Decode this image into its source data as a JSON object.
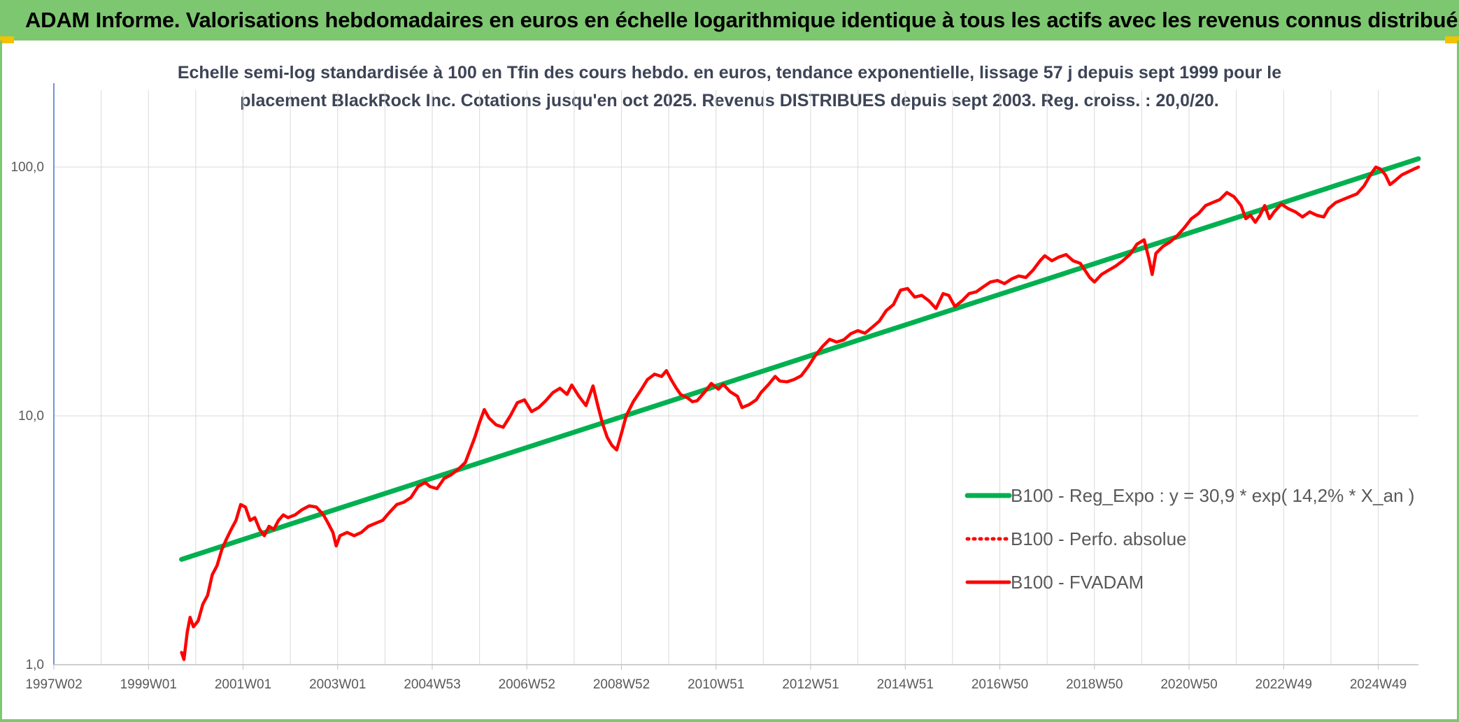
{
  "banner": {
    "title": "ADAM Informe. Valorisations hebdomadaires en euros en échelle logarithmique identique à tous les actifs avec les revenus connus distribués",
    "color": "#7dc770"
  },
  "chart_data": {
    "type": "line",
    "title_line1": "Echelle semi-log standardisée à 100 en Tfin des cours hebdo. en euros, tendance exponentielle, lissage 57 j depuis sept 1999 pour le",
    "title_line2": "placement BlackRock Inc. Cotations jusqu'en oct 2025. Revenus DISTRIBUES depuis sept 2003. Reg. croiss. : 20,0/20.",
    "y_scale": "log",
    "ylim": [
      1,
      130
    ],
    "y_ticks": [
      {
        "value": 1,
        "label": "1,0"
      },
      {
        "value": 10,
        "label": "10,0"
      },
      {
        "value": 100,
        "label": "100,0"
      }
    ],
    "x_ticks": [
      "1997W02",
      "1999W01",
      "2001W01",
      "2003W01",
      "2004W53",
      "2006W52",
      "2008W52",
      "2010W51",
      "2012W51",
      "2014W51",
      "2016W50",
      "2018W50",
      "2020W50",
      "2022W49",
      "2024W49"
    ],
    "x_tick_years": [
      1997.0,
      1999.0,
      2001.0,
      2003.0,
      2005.0,
      2007.0,
      2009.0,
      2011.0,
      2013.0,
      2015.0,
      2017.0,
      2019.0,
      2021.0,
      2023.0,
      2025.0
    ],
    "xlim": [
      1997.0,
      2025.85
    ],
    "grid": true,
    "legend_placement": "bottom-right",
    "series": [
      {
        "name": "B100 - Reg_Expo : y = 30,9 * exp( 14,2% *  X_an )",
        "color": "#00b050",
        "style": "solid",
        "points": [
          [
            1999.7,
            2.65
          ],
          [
            2025.85,
            108
          ]
        ]
      },
      {
        "name": "B100 - Perfo. absolue",
        "color": "#ff0000",
        "style": "dotted",
        "points": []
      },
      {
        "name": "B100 - FVADAM",
        "color": "#ff0000",
        "style": "solid",
        "points": [
          [
            1999.7,
            1.12
          ],
          [
            1999.75,
            1.05
          ],
          [
            1999.82,
            1.35
          ],
          [
            1999.88,
            1.55
          ],
          [
            1999.95,
            1.42
          ],
          [
            2000.05,
            1.5
          ],
          [
            2000.15,
            1.75
          ],
          [
            2000.25,
            1.9
          ],
          [
            2000.35,
            2.3
          ],
          [
            2000.45,
            2.5
          ],
          [
            2000.55,
            2.9
          ],
          [
            2000.65,
            3.2
          ],
          [
            2000.75,
            3.5
          ],
          [
            2000.85,
            3.8
          ],
          [
            2000.95,
            4.4
          ],
          [
            2001.05,
            4.3
          ],
          [
            2001.15,
            3.8
          ],
          [
            2001.25,
            3.9
          ],
          [
            2001.35,
            3.5
          ],
          [
            2001.45,
            3.3
          ],
          [
            2001.55,
            3.6
          ],
          [
            2001.65,
            3.5
          ],
          [
            2001.75,
            3.8
          ],
          [
            2001.85,
            4.0
          ],
          [
            2001.95,
            3.9
          ],
          [
            2002.1,
            4.0
          ],
          [
            2002.25,
            4.2
          ],
          [
            2002.4,
            4.35
          ],
          [
            2002.55,
            4.3
          ],
          [
            2002.7,
            4.0
          ],
          [
            2002.8,
            3.7
          ],
          [
            2002.9,
            3.4
          ],
          [
            2002.97,
            3.0
          ],
          [
            2003.05,
            3.3
          ],
          [
            2003.2,
            3.4
          ],
          [
            2003.35,
            3.3
          ],
          [
            2003.5,
            3.4
          ],
          [
            2003.65,
            3.6
          ],
          [
            2003.8,
            3.7
          ],
          [
            2003.95,
            3.8
          ],
          [
            2004.1,
            4.1
          ],
          [
            2004.25,
            4.4
          ],
          [
            2004.4,
            4.5
          ],
          [
            2004.55,
            4.7
          ],
          [
            2004.7,
            5.2
          ],
          [
            2004.85,
            5.4
          ],
          [
            2004.95,
            5.2
          ],
          [
            2005.1,
            5.1
          ],
          [
            2005.25,
            5.6
          ],
          [
            2005.4,
            5.8
          ],
          [
            2005.55,
            6.1
          ],
          [
            2005.7,
            6.5
          ],
          [
            2005.8,
            7.3
          ],
          [
            2005.9,
            8.2
          ],
          [
            2006.0,
            9.4
          ],
          [
            2006.1,
            10.6
          ],
          [
            2006.2,
            9.8
          ],
          [
            2006.35,
            9.2
          ],
          [
            2006.5,
            9.0
          ],
          [
            2006.65,
            10.0
          ],
          [
            2006.8,
            11.3
          ],
          [
            2006.95,
            11.6
          ],
          [
            2007.1,
            10.4
          ],
          [
            2007.25,
            10.8
          ],
          [
            2007.4,
            11.5
          ],
          [
            2007.55,
            12.4
          ],
          [
            2007.7,
            12.9
          ],
          [
            2007.85,
            12.2
          ],
          [
            2007.95,
            13.3
          ],
          [
            2008.1,
            12.0
          ],
          [
            2008.25,
            11.0
          ],
          [
            2008.4,
            13.2
          ],
          [
            2008.5,
            11.0
          ],
          [
            2008.6,
            9.3
          ],
          [
            2008.7,
            8.2
          ],
          [
            2008.8,
            7.6
          ],
          [
            2008.9,
            7.3
          ],
          [
            2009.0,
            8.5
          ],
          [
            2009.1,
            10.0
          ],
          [
            2009.25,
            11.4
          ],
          [
            2009.4,
            12.6
          ],
          [
            2009.55,
            14.0
          ],
          [
            2009.7,
            14.7
          ],
          [
            2009.85,
            14.4
          ],
          [
            2009.95,
            15.2
          ],
          [
            2010.05,
            14.0
          ],
          [
            2010.15,
            13.0
          ],
          [
            2010.25,
            12.2
          ],
          [
            2010.4,
            11.8
          ],
          [
            2010.5,
            11.4
          ],
          [
            2010.6,
            11.5
          ],
          [
            2010.75,
            12.4
          ],
          [
            2010.9,
            13.5
          ],
          [
            2011.05,
            12.8
          ],
          [
            2011.15,
            13.4
          ],
          [
            2011.3,
            12.5
          ],
          [
            2011.45,
            12.0
          ],
          [
            2011.55,
            10.8
          ],
          [
            2011.7,
            11.1
          ],
          [
            2011.85,
            11.6
          ],
          [
            2011.95,
            12.4
          ],
          [
            2012.1,
            13.3
          ],
          [
            2012.25,
            14.4
          ],
          [
            2012.35,
            13.8
          ],
          [
            2012.5,
            13.7
          ],
          [
            2012.65,
            14.0
          ],
          [
            2012.8,
            14.5
          ],
          [
            2012.95,
            15.8
          ],
          [
            2013.1,
            17.5
          ],
          [
            2013.25,
            19.0
          ],
          [
            2013.4,
            20.3
          ],
          [
            2013.55,
            19.8
          ],
          [
            2013.7,
            20.2
          ],
          [
            2013.85,
            21.4
          ],
          [
            2014.0,
            22.0
          ],
          [
            2014.15,
            21.5
          ],
          [
            2014.3,
            22.7
          ],
          [
            2014.45,
            24.0
          ],
          [
            2014.6,
            26.5
          ],
          [
            2014.75,
            28.0
          ],
          [
            2014.9,
            32.0
          ],
          [
            2015.05,
            32.5
          ],
          [
            2015.2,
            30.0
          ],
          [
            2015.35,
            30.5
          ],
          [
            2015.5,
            29.0
          ],
          [
            2015.65,
            27.0
          ],
          [
            2015.8,
            31.0
          ],
          [
            2015.92,
            30.5
          ],
          [
            2016.05,
            27.5
          ],
          [
            2016.2,
            29.0
          ],
          [
            2016.35,
            31.0
          ],
          [
            2016.5,
            31.5
          ],
          [
            2016.65,
            33.0
          ],
          [
            2016.8,
            34.5
          ],
          [
            2016.95,
            35.0
          ],
          [
            2017.1,
            34.0
          ],
          [
            2017.25,
            35.5
          ],
          [
            2017.4,
            36.5
          ],
          [
            2017.55,
            36.0
          ],
          [
            2017.7,
            38.5
          ],
          [
            2017.85,
            42.0
          ],
          [
            2017.95,
            44.0
          ],
          [
            2018.1,
            42.0
          ],
          [
            2018.25,
            43.5
          ],
          [
            2018.4,
            44.5
          ],
          [
            2018.55,
            42.0
          ],
          [
            2018.7,
            41.0
          ],
          [
            2018.8,
            38.5
          ],
          [
            2018.9,
            36.0
          ],
          [
            2019.0,
            34.5
          ],
          [
            2019.15,
            37.0
          ],
          [
            2019.3,
            38.5
          ],
          [
            2019.45,
            40.0
          ],
          [
            2019.6,
            42.0
          ],
          [
            2019.75,
            44.5
          ],
          [
            2019.9,
            49.0
          ],
          [
            2020.05,
            51.0
          ],
          [
            2020.15,
            43.0
          ],
          [
            2020.22,
            37.0
          ],
          [
            2020.3,
            45.0
          ],
          [
            2020.45,
            48.0
          ],
          [
            2020.6,
            50.0
          ],
          [
            2020.75,
            53.0
          ],
          [
            2020.9,
            57.0
          ],
          [
            2021.05,
            62.0
          ],
          [
            2021.2,
            65.0
          ],
          [
            2021.35,
            70.0
          ],
          [
            2021.5,
            72.0
          ],
          [
            2021.65,
            74.0
          ],
          [
            2021.8,
            79.0
          ],
          [
            2021.95,
            76.0
          ],
          [
            2022.1,
            70.0
          ],
          [
            2022.2,
            62.0
          ],
          [
            2022.3,
            64.0
          ],
          [
            2022.4,
            60.0
          ],
          [
            2022.5,
            64.0
          ],
          [
            2022.6,
            70.0
          ],
          [
            2022.7,
            62.0
          ],
          [
            2022.8,
            66.0
          ],
          [
            2022.95,
            71.0
          ],
          [
            2023.1,
            68.0
          ],
          [
            2023.25,
            66.0
          ],
          [
            2023.4,
            63.0
          ],
          [
            2023.55,
            66.0
          ],
          [
            2023.7,
            64.0
          ],
          [
            2023.85,
            63.0
          ],
          [
            2023.95,
            68.0
          ],
          [
            2024.1,
            72.0
          ],
          [
            2024.25,
            74.0
          ],
          [
            2024.4,
            76.0
          ],
          [
            2024.55,
            78.0
          ],
          [
            2024.7,
            84.0
          ],
          [
            2024.85,
            94.0
          ],
          [
            2024.95,
            100.0
          ],
          [
            2025.05,
            98.0
          ],
          [
            2025.15,
            93.0
          ],
          [
            2025.25,
            85.0
          ],
          [
            2025.35,
            88.0
          ],
          [
            2025.5,
            93.0
          ],
          [
            2025.65,
            96.0
          ],
          [
            2025.8,
            99.0
          ],
          [
            2025.85,
            100.0
          ]
        ]
      }
    ]
  }
}
